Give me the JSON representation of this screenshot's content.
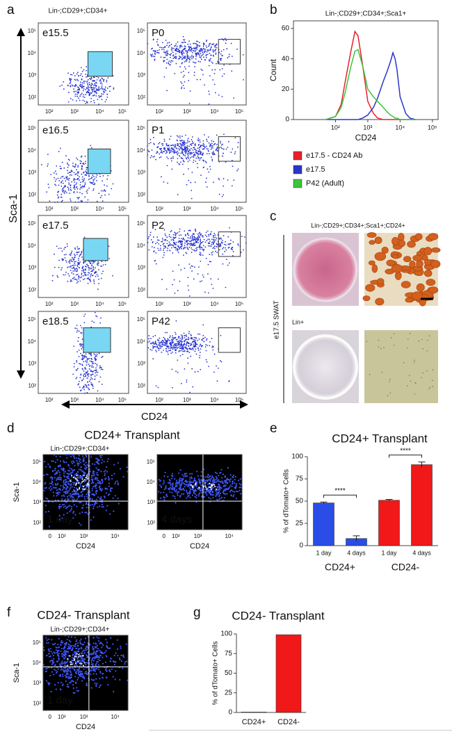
{
  "panel_labels": [
    "a",
    "b",
    "c",
    "d",
    "e",
    "f",
    "g"
  ],
  "panel_a": {
    "header": "Lin-;CD29+;CD34+",
    "plots": [
      "e15.5",
      "P0",
      "e16.5",
      "P1",
      "e17.5",
      "P2",
      "e18.5",
      "P42"
    ],
    "y_ticks": [
      "10⁵",
      "10⁴",
      "10³",
      "10²"
    ],
    "x_ticks": [
      "10²",
      "10³",
      "10⁴",
      "10⁵"
    ],
    "y_label": "Sca-1",
    "x_label": "CD24"
  },
  "panel_c": {
    "title": "Lin-;CD29+;CD34+;Sca1+;CD24+",
    "row_label": "Lin+",
    "side_label": "e17.5 SWAT"
  },
  "panel_d": {
    "title": "CD24+ Transplant",
    "header": "Lin-;CD29+;CD34+",
    "plots": [
      "1 day",
      "4 days"
    ],
    "y_ticks": [
      "10⁵",
      "10⁴",
      "10³",
      "10²"
    ],
    "x_ticks": [
      "0",
      "10²",
      "10³",
      "10⁴"
    ],
    "y_label": "Sca-1",
    "x_label": "CD24"
  },
  "panel_f": {
    "title": "CD24- Transplant",
    "header": "Lin-;CD29+;CD34+",
    "plots": [
      "1 day"
    ],
    "y_ticks": [
      "10⁵",
      "10⁴",
      "10³",
      "10²"
    ],
    "x_ticks": [
      "0",
      "10²",
      "10³",
      "10⁴"
    ],
    "y_label": "Sca-1",
    "x_label": "CD24"
  },
  "chart_data": [
    {
      "type": "line",
      "title": "Lin-;CD29+;CD34+;Sca1+",
      "x_label": "CD24",
      "y_label": "Count",
      "log_x": true,
      "x": [
        50,
        100,
        150,
        200,
        300,
        400,
        500,
        700,
        1000,
        1500,
        2000,
        3000,
        4000,
        5000,
        6000,
        7000,
        8000,
        10000,
        15000,
        20000,
        30000
      ],
      "series": [
        {
          "name": "e17.5 - CD24 Ab",
          "color": "#e8202a",
          "values": [
            0,
            2,
            10,
            25,
            45,
            58,
            55,
            35,
            12,
            4,
            1,
            0,
            0,
            0,
            0,
            0,
            0,
            0,
            0,
            0,
            0
          ]
        },
        {
          "name": "e17.5",
          "color": "#2a35c8",
          "values": [
            0,
            0,
            0,
            0,
            0,
            0,
            0,
            1,
            3,
            8,
            14,
            25,
            32,
            38,
            44,
            40,
            33,
            15,
            4,
            1,
            0
          ]
        },
        {
          "name": "P42 (Adult)",
          "color": "#3cc43c",
          "values": [
            0,
            2,
            8,
            18,
            35,
            45,
            46,
            35,
            20,
            15,
            12,
            8,
            5,
            3,
            2,
            1,
            1,
            0,
            0,
            0,
            0
          ]
        }
      ],
      "xlim": [
        5,
        150000
      ],
      "xticks": [
        {
          "value": 100,
          "label": "10²"
        },
        {
          "value": 1000,
          "label": "10³"
        },
        {
          "value": 10000,
          "label": "10⁴"
        },
        {
          "value": 100000,
          "label": "10⁵"
        }
      ],
      "ylim": [
        0,
        65
      ],
      "yticks": [
        0,
        20,
        40,
        60
      ]
    },
    {
      "type": "bar",
      "title": "CD24+ Transplant",
      "y_label": "% of dTomato+ Cells",
      "categories": [
        "1 day",
        "4 days",
        "1 day",
        "4 days"
      ],
      "groups": [
        "CD24+",
        "CD24-"
      ],
      "values": [
        48,
        8,
        51,
        91
      ],
      "errors": [
        1,
        3,
        1,
        3
      ],
      "colors": [
        "#2a4de8",
        "#2a4de8",
        "#f01818",
        "#f01818"
      ],
      "annotations": [
        "****",
        "****"
      ],
      "ylim": [
        0,
        100
      ],
      "yticks": [
        0,
        25,
        50,
        75,
        100
      ]
    },
    {
      "type": "bar",
      "title": "CD24- Transplant",
      "y_label": "% of dTomato+ Cells",
      "categories": [
        "CD24+",
        "CD24-"
      ],
      "values": [
        0.5,
        99
      ],
      "colors": [
        "#2a4de8",
        "#f01818"
      ],
      "ylim": [
        0,
        100
      ],
      "yticks": [
        0,
        25,
        50,
        75,
        100
      ]
    }
  ]
}
